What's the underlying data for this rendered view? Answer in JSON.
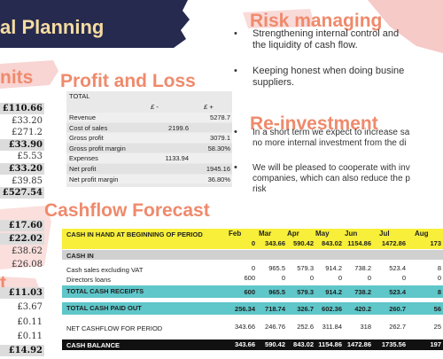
{
  "title": "al Planning",
  "units": {
    "groups": [
      {
        "heading": "nits",
        "items": [
          {
            "text": "£110.66",
            "emphasis": true
          },
          {
            "text": "£33.20",
            "emphasis": false
          },
          {
            "text": "£271.2",
            "emphasis": false
          },
          {
            "text": "£33.90",
            "emphasis": true
          },
          {
            "text": "£5.53",
            "emphasis": false
          },
          {
            "text": "£33.20",
            "emphasis": true
          },
          {
            "text": "£39.85",
            "emphasis": false
          },
          {
            "text": "£527.54",
            "emphasis": true
          }
        ]
      },
      {
        "items": [
          {
            "text": "£17.60",
            "emphasis": true
          },
          {
            "text": "£22.02",
            "emphasis": true
          },
          {
            "text": "£38.62",
            "emphasis": false
          },
          {
            "text": "£26.08",
            "emphasis": false
          }
        ]
      },
      {
        "heading": "t",
        "items": [
          {
            "text": "£11.03",
            "emphasis": true
          },
          {
            "text": "£3.67",
            "emphasis": false
          },
          {
            "text": "£0.11",
            "emphasis": false
          },
          {
            "text": "£0.11",
            "emphasis": false
          },
          {
            "text": "£14.92",
            "emphasis": true
          }
        ]
      }
    ]
  },
  "profit_and_loss": {
    "heading": "Profit and Loss",
    "header": "TOTAL",
    "minus_label": "£ -",
    "plus_label": "£ +",
    "rows": [
      {
        "label": "Revenue",
        "plus": "5278.7"
      },
      {
        "label": "Cost of sales",
        "minus": "2199.6"
      },
      {
        "label": "Gross profit",
        "plus": "3079.1"
      },
      {
        "label": "Gross profit margin",
        "plus": "58.30%"
      },
      {
        "label": "Expenses",
        "minus": "1133.94"
      },
      {
        "label": "Net profit",
        "plus": "1945.16"
      },
      {
        "label": "Net profit margin",
        "plus": "36.80%"
      }
    ]
  },
  "risk": {
    "heading": "Risk managing",
    "bullets": [
      [
        "Strengthening internal control and",
        "the liquidity of cash flow."
      ],
      [
        "Keeping honest when doing busine",
        "suppliers."
      ]
    ]
  },
  "reinvestment": {
    "heading": "Re-investment",
    "bullets": [
      [
        "In a short term we expect to increase sa",
        "no more internal investment from the di"
      ],
      [
        "We will be pleased to cooperate with inv",
        "companies, which can also reduce the p",
        "risk"
      ]
    ]
  },
  "cashflow": {
    "heading": "Cashflow Forecast",
    "columns": [
      "Feb",
      "Mar",
      "Apr",
      "May",
      "Jun",
      "Jul",
      "Aug"
    ],
    "rows": [
      {
        "label": "CASH IN HAND AT BEGINNING OF PERIOD",
        "style": "yellow",
        "values": [
          "0",
          "343.66",
          "590.42",
          "843.02",
          "1154.86",
          "1472.86",
          "173"
        ]
      },
      {
        "label": "CASH IN",
        "style": "gray"
      },
      {
        "label": "Cash sales excluding VAT",
        "style": "plain",
        "values": [
          "0",
          "965.5",
          "579.3",
          "914.2",
          "738.2",
          "523.4",
          "8"
        ]
      },
      {
        "label": "Directors loans",
        "style": "plain",
        "values": [
          "600",
          "0",
          "0",
          "0",
          "0",
          "0",
          "0"
        ]
      },
      {
        "label": "TOTAL CASH RECEIPTS",
        "style": "teal",
        "values": [
          "600",
          "965.5",
          "579.3",
          "914.2",
          "738.2",
          "523.4",
          "8"
        ]
      },
      {
        "label": "TOTAL CASH PAID OUT",
        "style": "teal",
        "values": [
          "256.34",
          "718.74",
          "326.7",
          "602.36",
          "420.2",
          "260.7",
          "56"
        ]
      },
      {
        "label": "NET CASHFLOW FOR PERIOD",
        "style": "plain",
        "values": [
          "343.66",
          "246.76",
          "252.6",
          "311.84",
          "318",
          "262.7",
          "25"
        ]
      },
      {
        "label": "CASH BALANCE",
        "style": "black",
        "values": [
          "343.66",
          "590.42",
          "843.02",
          "1154.86",
          "1472.86",
          "1735.56",
          "197"
        ]
      }
    ]
  }
}
